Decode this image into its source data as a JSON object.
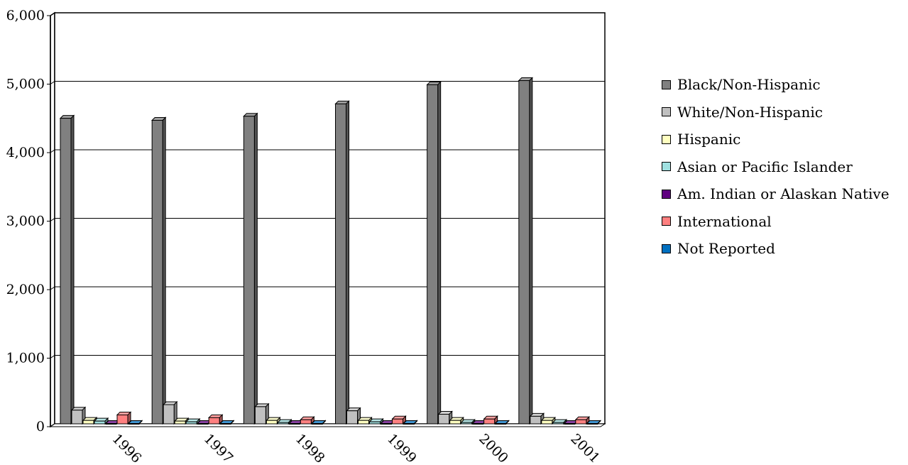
{
  "chart_data": {
    "type": "bar",
    "categories": [
      "1996",
      "1997",
      "1998",
      "1999",
      "2000",
      "2001"
    ],
    "ylim": [
      0,
      6000
    ],
    "yticks": [
      "0",
      "1,000",
      "2,000",
      "3,000",
      "4,000",
      "5,000",
      "6,000"
    ],
    "ytick_values": [
      0,
      1000,
      2000,
      3000,
      4000,
      5000,
      6000
    ],
    "grid": true,
    "legend_position": "right",
    "series": [
      {
        "name": "Black/Non-Hispanic",
        "color": "#808080",
        "values": [
          4460,
          4430,
          4490,
          4670,
          4950,
          5010
        ]
      },
      {
        "name": "White/Non-Hispanic",
        "color": "#c0c0c0",
        "values": [
          200,
          280,
          250,
          190,
          140,
          110
        ]
      },
      {
        "name": "Hispanic",
        "color": "#ffffc0",
        "values": [
          50,
          40,
          50,
          50,
          50,
          50
        ]
      },
      {
        "name": "Asian or Pacific Islander",
        "color": "#a0e0e0",
        "values": [
          40,
          30,
          20,
          30,
          20,
          20
        ]
      },
      {
        "name": "Am. Indian or Alaskan Native",
        "color": "#600080",
        "values": [
          5,
          5,
          5,
          5,
          5,
          5
        ]
      },
      {
        "name": "International",
        "color": "#ff8080",
        "values": [
          130,
          90,
          60,
          70,
          70,
          60
        ]
      },
      {
        "name": "Not Reported",
        "color": "#0070c0",
        "values": [
          5,
          5,
          5,
          5,
          5,
          5
        ]
      }
    ]
  }
}
